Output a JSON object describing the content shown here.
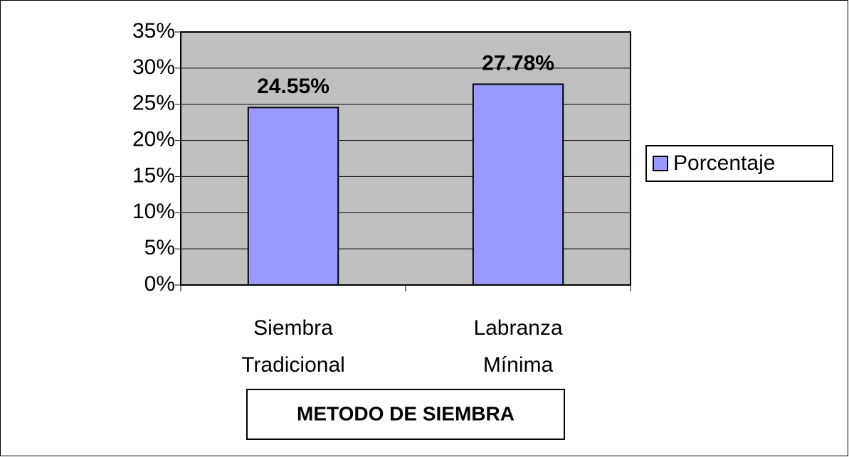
{
  "chart_data": {
    "type": "bar",
    "categories": [
      "Siembra Tradicional",
      "Labranza Mínima"
    ],
    "series": [
      {
        "name": "Porcentaje",
        "color": "#9999ff",
        "values": [
          24.55,
          27.78
        ],
        "value_labels": [
          "24.55%",
          "27.78%"
        ]
      }
    ],
    "x_label": "METODO DE SIEMBRA",
    "ylim": [
      0,
      35
    ],
    "yticks": [
      {
        "value": 0,
        "label": "0%"
      },
      {
        "value": 5,
        "label": "5%"
      },
      {
        "value": 10,
        "label": "10%"
      },
      {
        "value": 15,
        "label": "15%"
      },
      {
        "value": 20,
        "label": "20%"
      },
      {
        "value": 25,
        "label": "25%"
      },
      {
        "value": 30,
        "label": "30%"
      },
      {
        "value": 35,
        "label": "35%"
      }
    ],
    "grid": true,
    "plot_background": "#c0c0c0",
    "legend": "right"
  }
}
